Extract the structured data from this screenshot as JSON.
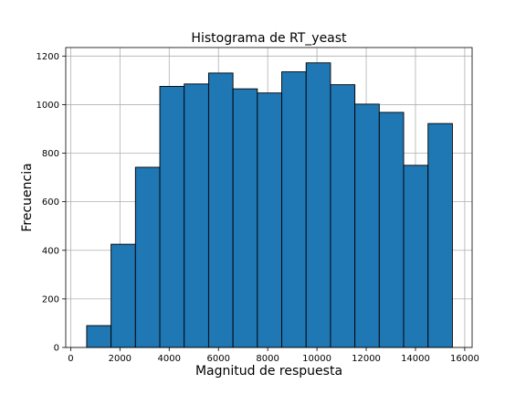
{
  "chart_data": {
    "type": "bar",
    "title": "Histograma de RT_yeast",
    "xlabel": "Magnitud de respuesta",
    "ylabel": "Frecuencia",
    "xlim": [
      -200,
      16300
    ],
    "ylim": [
      0,
      1235
    ],
    "grid": true,
    "bar_color": "#1f77b4",
    "edge_color": "#000000",
    "grid_color": "#b0b0b0",
    "xticks": [
      0,
      2000,
      4000,
      6000,
      8000,
      10000,
      12000,
      14000,
      16000
    ],
    "xtick_labels": [
      "0",
      "2000",
      "4000",
      "6000",
      "8000",
      "10000",
      "12000",
      "14000",
      "16000"
    ],
    "yticks": [
      0,
      200,
      400,
      600,
      800,
      1000,
      1200
    ],
    "ytick_labels": [
      "0",
      "200",
      "400",
      "600",
      "800",
      "1000",
      "1200"
    ],
    "bin_edges": [
      650,
      1640,
      2630,
      3620,
      4610,
      5600,
      6590,
      7580,
      8570,
      9560,
      10550,
      11540,
      12530,
      13520,
      14510,
      15500
    ],
    "values": [
      90,
      425,
      742,
      1075,
      1085,
      1130,
      1065,
      1048,
      1135,
      1172,
      1082,
      1002,
      968,
      750,
      922
    ]
  }
}
